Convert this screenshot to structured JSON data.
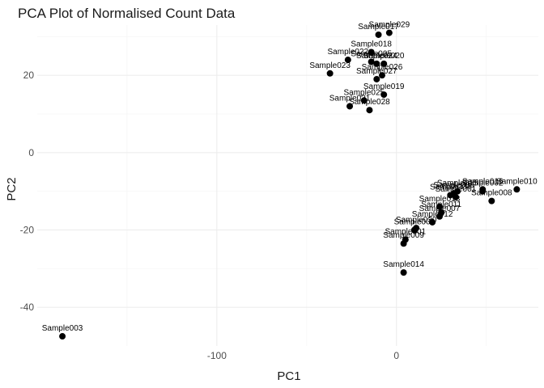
{
  "chart_data": {
    "type": "scatter",
    "title": "PCA Plot of Normalised Count Data",
    "xlabel": "PC1",
    "ylabel": "PC2",
    "xlim": [
      -200,
      79
    ],
    "ylim": [
      -50,
      33
    ],
    "x_ticks": [
      -100,
      0
    ],
    "x_minor_ticks": [
      -150,
      -50,
      50
    ],
    "y_ticks": [
      -40,
      -20,
      0,
      20
    ],
    "y_minor_ticks": [
      -30,
      -10,
      10,
      30
    ],
    "grid": true,
    "legend": "none",
    "points": [
      {
        "label": "Sample003",
        "x": -186,
        "y": -47.5
      },
      {
        "label": "Sample029",
        "x": -4,
        "y": 31
      },
      {
        "label": "Sample017",
        "x": -10,
        "y": 30.5
      },
      {
        "label": "Sample018",
        "x": -14,
        "y": 26
      },
      {
        "label": "Sample022",
        "x": -27,
        "y": 24
      },
      {
        "label": "Sample005",
        "x": -14,
        "y": 23.5
      },
      {
        "label": "Sample024",
        "x": -11,
        "y": 23
      },
      {
        "label": "Sample020",
        "x": -7,
        "y": 23
      },
      {
        "label": "Sample023",
        "x": -37,
        "y": 20.5
      },
      {
        "label": "Sample026",
        "x": -8,
        "y": 20
      },
      {
        "label": "Sample027",
        "x": -11,
        "y": 19
      },
      {
        "label": "Sample019",
        "x": -7,
        "y": 15
      },
      {
        "label": "Sample025",
        "x": -18,
        "y": 13.5
      },
      {
        "label": "Sample021",
        "x": -26,
        "y": 12
      },
      {
        "label": "Sample028",
        "x": -15,
        "y": 11
      },
      {
        "label": "Sample010",
        "x": 67,
        "y": -9.5
      },
      {
        "label": "Sample008",
        "x": 53,
        "y": -12.5
      },
      {
        "label": "Sample016",
        "x": 48,
        "y": -9.5
      },
      {
        "label": "Sample002",
        "x": 48,
        "y": -10
      },
      {
        "label": "Sample015",
        "x": 34,
        "y": -10
      },
      {
        "label": "Sample006",
        "x": 32,
        "y": -10.5
      },
      {
        "label": "Sample004",
        "x": 30,
        "y": -11
      },
      {
        "label": "Sample001",
        "x": 33,
        "y": -11.5
      },
      {
        "label": "Sample013",
        "x": 24,
        "y": -14
      },
      {
        "label": "Sample011",
        "x": 25,
        "y": -15.5
      },
      {
        "label": "Sample007",
        "x": 24,
        "y": -16.5
      },
      {
        "label": "Sample012",
        "x": 20,
        "y": -18
      },
      {
        "label": "Sample030",
        "x": 11,
        "y": -19.5
      },
      {
        "label": "Sample009",
        "x": 10,
        "y": -20
      },
      {
        "label": "Sample001",
        "x": 5,
        "y": -22.5
      },
      {
        "label": "Sample009",
        "x": 4,
        "y": -23.5
      },
      {
        "label": "Sample014",
        "x": 4,
        "y": -31
      }
    ]
  }
}
